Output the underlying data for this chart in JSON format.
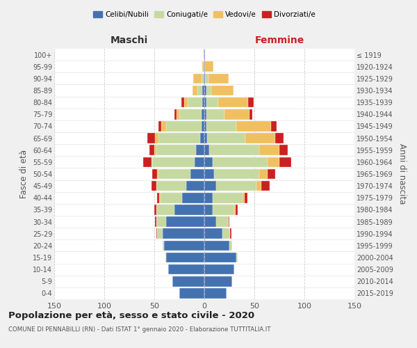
{
  "age_groups": [
    "0-4",
    "5-9",
    "10-14",
    "15-19",
    "20-24",
    "25-29",
    "30-34",
    "35-39",
    "40-44",
    "45-49",
    "50-54",
    "55-59",
    "60-64",
    "65-69",
    "70-74",
    "75-79",
    "80-84",
    "85-89",
    "90-94",
    "95-99",
    "100+"
  ],
  "birth_years": [
    "2015-2019",
    "2010-2014",
    "2005-2009",
    "2000-2004",
    "1995-1999",
    "1990-1994",
    "1985-1989",
    "1980-1984",
    "1975-1979",
    "1970-1974",
    "1965-1969",
    "1960-1964",
    "1955-1959",
    "1950-1954",
    "1945-1949",
    "1940-1944",
    "1935-1939",
    "1930-1934",
    "1925-1929",
    "1920-1924",
    "≤ 1919"
  ],
  "colors": {
    "celibi": "#4472b0",
    "coniugati": "#c5d9a0",
    "vedovi": "#f0c060",
    "divorziati": "#cc2020"
  },
  "males": {
    "celibi": [
      25,
      32,
      36,
      38,
      40,
      42,
      38,
      30,
      22,
      18,
      14,
      10,
      8,
      4,
      3,
      3,
      2,
      2,
      1,
      0,
      1
    ],
    "coniugati": [
      0,
      0,
      0,
      1,
      2,
      5,
      10,
      18,
      22,
      30,
      32,
      42,
      40,
      42,
      35,
      22,
      15,
      5,
      2,
      0,
      0
    ],
    "vedovi": [
      0,
      0,
      0,
      0,
      0,
      0,
      0,
      0,
      1,
      0,
      1,
      1,
      2,
      3,
      5,
      3,
      3,
      5,
      8,
      2,
      0
    ],
    "divorziati": [
      0,
      0,
      0,
      0,
      0,
      1,
      1,
      2,
      2,
      5,
      5,
      8,
      5,
      8,
      3,
      2,
      3,
      0,
      0,
      0,
      0
    ]
  },
  "females": {
    "nubili": [
      22,
      28,
      30,
      32,
      25,
      18,
      12,
      8,
      8,
      12,
      10,
      8,
      5,
      3,
      2,
      2,
      2,
      2,
      1,
      1,
      1
    ],
    "coniugate": [
      0,
      0,
      0,
      1,
      3,
      8,
      12,
      22,
      30,
      40,
      45,
      55,
      50,
      38,
      30,
      18,
      12,
      5,
      3,
      0,
      0
    ],
    "vedove": [
      0,
      0,
      0,
      0,
      0,
      0,
      0,
      1,
      2,
      5,
      8,
      12,
      20,
      30,
      35,
      25,
      30,
      22,
      20,
      8,
      0
    ],
    "divorziate": [
      0,
      0,
      0,
      0,
      0,
      1,
      1,
      2,
      3,
      8,
      8,
      12,
      8,
      8,
      5,
      3,
      5,
      0,
      0,
      0,
      0
    ]
  },
  "title": "Popolazione per età, sesso e stato civile - 2020",
  "subtitle": "COMUNE DI PENNABILLI (RN) - Dati ISTAT 1° gennaio 2020 - Elaborazione TUTTITALIA.IT",
  "xlabel_left": "Maschi",
  "xlabel_right": "Femmine",
  "ylabel_left": "Fasce di età",
  "ylabel_right": "Anni di nascita",
  "xlim": 150,
  "bg_color": "#f0f0f0",
  "plot_bg": "#ffffff",
  "legend_labels": [
    "Celibi/Nubili",
    "Coniugati/e",
    "Vedovi/e",
    "Divorziati/e"
  ]
}
